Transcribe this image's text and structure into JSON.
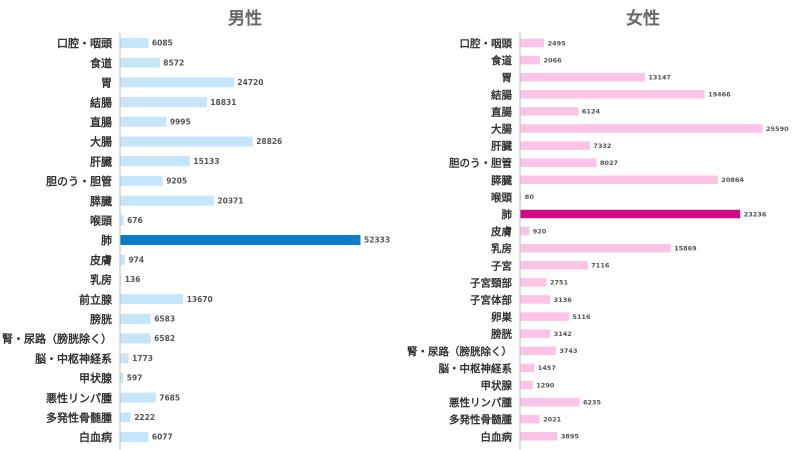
{
  "colors": {
    "male_bar": "#c5e6fa",
    "male_highlight": "#0a7cc8",
    "female_bar": "#fbc3e6",
    "female_highlight": "#cf0a87",
    "axis": "#bdbdbd",
    "label": "#333333",
    "value": "#555555",
    "title": "#666666"
  },
  "chart_data": [
    {
      "type": "bar",
      "orientation": "horizontal",
      "title": "男性",
      "highlight": "肺",
      "categories": [
        "口腔・咽頭",
        "食道",
        "胃",
        "結腸",
        "直腸",
        "大腸",
        "肝臓",
        "胆のう・胆管",
        "膵臓",
        "喉頭",
        "肺",
        "皮膚",
        "乳房",
        "前立腺",
        "膀胱",
        "腎・尿路（膀胱除く）",
        "脳・中枢神経系",
        "甲状腺",
        "悪性リンパ腫",
        "多発性骨髄腫",
        "白血病"
      ],
      "values": [
        6085,
        8572,
        24720,
        18831,
        9995,
        28826,
        15133,
        9205,
        20371,
        676,
        52333,
        974,
        136,
        13670,
        6583,
        6582,
        1773,
        597,
        7685,
        2222,
        6077
      ]
    },
    {
      "type": "bar",
      "orientation": "horizontal",
      "title": "女性",
      "highlight": "肺",
      "categories": [
        "口腔・咽頭",
        "食道",
        "胃",
        "結腸",
        "直腸",
        "大腸",
        "肝臓",
        "胆のう・胆管",
        "膵臓",
        "喉頭",
        "肺",
        "皮膚",
        "乳房",
        "子宮",
        "子宮頸部",
        "子宮体部",
        "卵巣",
        "膀胱",
        "腎・尿路（膀胱除く）",
        "脳・中枢神経系",
        "甲状腺",
        "悪性リンパ腫",
        "多発性骨髄腫",
        "白血病"
      ],
      "values": [
        2495,
        2066,
        13147,
        19466,
        6124,
        25590,
        7332,
        8027,
        20864,
        80,
        23236,
        920,
        15869,
        7116,
        2751,
        3136,
        5116,
        3142,
        3743,
        1457,
        1290,
        6235,
        2021,
        3895
      ]
    }
  ]
}
